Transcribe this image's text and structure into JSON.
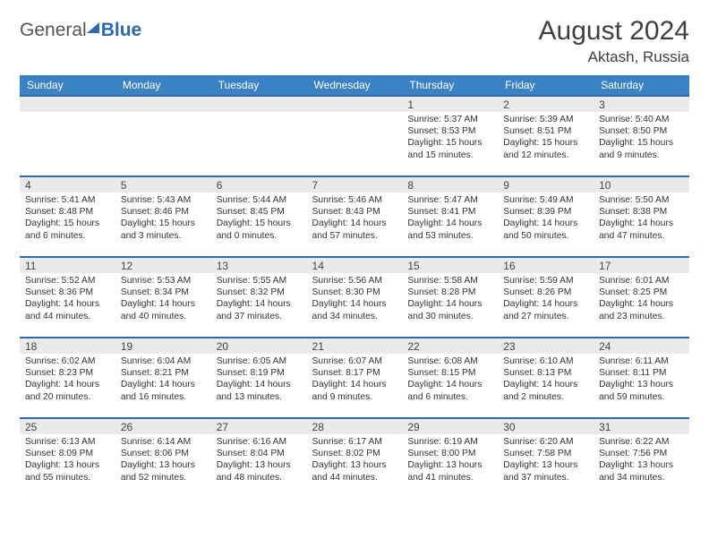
{
  "brand": {
    "part1": "General",
    "part2": "Blue"
  },
  "header": {
    "month": "August 2024",
    "location": "Aktash, Russia"
  },
  "colors": {
    "header_bg": "#3b82c4",
    "border": "#2f6aa8",
    "daynum_bg": "#eaeaea",
    "text": "#333333"
  },
  "weekdays": [
    "Sunday",
    "Monday",
    "Tuesday",
    "Wednesday",
    "Thursday",
    "Friday",
    "Saturday"
  ],
  "weeks": [
    [
      null,
      null,
      null,
      null,
      {
        "n": "1",
        "sunrise": "5:37 AM",
        "sunset": "8:53 PM",
        "daylight": "15 hours and 15 minutes."
      },
      {
        "n": "2",
        "sunrise": "5:39 AM",
        "sunset": "8:51 PM",
        "daylight": "15 hours and 12 minutes."
      },
      {
        "n": "3",
        "sunrise": "5:40 AM",
        "sunset": "8:50 PM",
        "daylight": "15 hours and 9 minutes."
      }
    ],
    [
      {
        "n": "4",
        "sunrise": "5:41 AM",
        "sunset": "8:48 PM",
        "daylight": "15 hours and 6 minutes."
      },
      {
        "n": "5",
        "sunrise": "5:43 AM",
        "sunset": "8:46 PM",
        "daylight": "15 hours and 3 minutes."
      },
      {
        "n": "6",
        "sunrise": "5:44 AM",
        "sunset": "8:45 PM",
        "daylight": "15 hours and 0 minutes."
      },
      {
        "n": "7",
        "sunrise": "5:46 AM",
        "sunset": "8:43 PM",
        "daylight": "14 hours and 57 minutes."
      },
      {
        "n": "8",
        "sunrise": "5:47 AM",
        "sunset": "8:41 PM",
        "daylight": "14 hours and 53 minutes."
      },
      {
        "n": "9",
        "sunrise": "5:49 AM",
        "sunset": "8:39 PM",
        "daylight": "14 hours and 50 minutes."
      },
      {
        "n": "10",
        "sunrise": "5:50 AM",
        "sunset": "8:38 PM",
        "daylight": "14 hours and 47 minutes."
      }
    ],
    [
      {
        "n": "11",
        "sunrise": "5:52 AM",
        "sunset": "8:36 PM",
        "daylight": "14 hours and 44 minutes."
      },
      {
        "n": "12",
        "sunrise": "5:53 AM",
        "sunset": "8:34 PM",
        "daylight": "14 hours and 40 minutes."
      },
      {
        "n": "13",
        "sunrise": "5:55 AM",
        "sunset": "8:32 PM",
        "daylight": "14 hours and 37 minutes."
      },
      {
        "n": "14",
        "sunrise": "5:56 AM",
        "sunset": "8:30 PM",
        "daylight": "14 hours and 34 minutes."
      },
      {
        "n": "15",
        "sunrise": "5:58 AM",
        "sunset": "8:28 PM",
        "daylight": "14 hours and 30 minutes."
      },
      {
        "n": "16",
        "sunrise": "5:59 AM",
        "sunset": "8:26 PM",
        "daylight": "14 hours and 27 minutes."
      },
      {
        "n": "17",
        "sunrise": "6:01 AM",
        "sunset": "8:25 PM",
        "daylight": "14 hours and 23 minutes."
      }
    ],
    [
      {
        "n": "18",
        "sunrise": "6:02 AM",
        "sunset": "8:23 PM",
        "daylight": "14 hours and 20 minutes."
      },
      {
        "n": "19",
        "sunrise": "6:04 AM",
        "sunset": "8:21 PM",
        "daylight": "14 hours and 16 minutes."
      },
      {
        "n": "20",
        "sunrise": "6:05 AM",
        "sunset": "8:19 PM",
        "daylight": "14 hours and 13 minutes."
      },
      {
        "n": "21",
        "sunrise": "6:07 AM",
        "sunset": "8:17 PM",
        "daylight": "14 hours and 9 minutes."
      },
      {
        "n": "22",
        "sunrise": "6:08 AM",
        "sunset": "8:15 PM",
        "daylight": "14 hours and 6 minutes."
      },
      {
        "n": "23",
        "sunrise": "6:10 AM",
        "sunset": "8:13 PM",
        "daylight": "14 hours and 2 minutes."
      },
      {
        "n": "24",
        "sunrise": "6:11 AM",
        "sunset": "8:11 PM",
        "daylight": "13 hours and 59 minutes."
      }
    ],
    [
      {
        "n": "25",
        "sunrise": "6:13 AM",
        "sunset": "8:09 PM",
        "daylight": "13 hours and 55 minutes."
      },
      {
        "n": "26",
        "sunrise": "6:14 AM",
        "sunset": "8:06 PM",
        "daylight": "13 hours and 52 minutes."
      },
      {
        "n": "27",
        "sunrise": "6:16 AM",
        "sunset": "8:04 PM",
        "daylight": "13 hours and 48 minutes."
      },
      {
        "n": "28",
        "sunrise": "6:17 AM",
        "sunset": "8:02 PM",
        "daylight": "13 hours and 44 minutes."
      },
      {
        "n": "29",
        "sunrise": "6:19 AM",
        "sunset": "8:00 PM",
        "daylight": "13 hours and 41 minutes."
      },
      {
        "n": "30",
        "sunrise": "6:20 AM",
        "sunset": "7:58 PM",
        "daylight": "13 hours and 37 minutes."
      },
      {
        "n": "31",
        "sunrise": "6:22 AM",
        "sunset": "7:56 PM",
        "daylight": "13 hours and 34 minutes."
      }
    ]
  ],
  "labels": {
    "sunrise": "Sunrise:",
    "sunset": "Sunset:",
    "daylight": "Daylight:"
  }
}
